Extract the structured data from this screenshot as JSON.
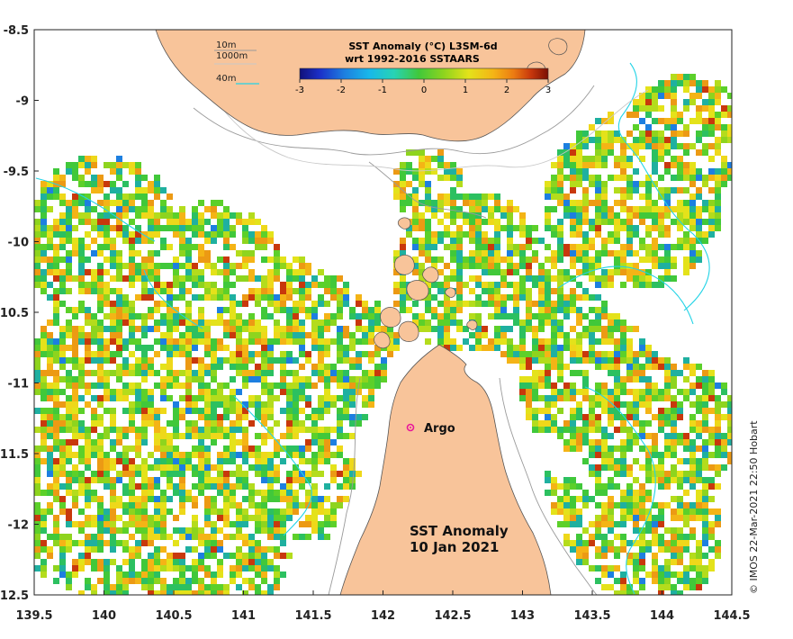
{
  "map": {
    "colorbar_title_line1": "SST Anomaly (°C) L3SM-6d",
    "colorbar_title_line2": "wrt 1992-2016 SSTAARS",
    "colorbar_ticks": [
      "-3",
      "-2",
      "-1",
      "0",
      "1",
      "2",
      "3"
    ],
    "colorbar_range": [
      -3,
      3
    ],
    "depth_legend": [
      {
        "label": "10m",
        "color": "#9a9a9a"
      },
      {
        "label": "1000m",
        "color": "#c8c8c8"
      },
      {
        "label": "40m",
        "color": "#22d3e6"
      }
    ],
    "lon_ticks": [
      "139.5",
      "140",
      "140.5",
      "141",
      "141.5",
      "142",
      "142.5",
      "143",
      "143.5",
      "144",
      "144.5"
    ],
    "lat_ticks": [
      "-8.5",
      "-9",
      "-9.5",
      "-10",
      "-10.5",
      "-11",
      "-11.5",
      "-12",
      "-12.5"
    ],
    "lon_range": [
      139.5,
      144.5
    ],
    "lat_range": [
      -12.5,
      -8.5
    ],
    "annotation_line1": "SST Anomaly",
    "annotation_line2": "10 Jan 2021",
    "argo_label": "Argo",
    "argo_position": {
      "lon": 142.2,
      "lat": -11.3
    },
    "credit": "© IMOS 22-Mar-2021 22:50 Hobart",
    "colors": {
      "land": "#f8c49a",
      "argo_marker": "#e8189a",
      "contour_40m": "#22d3e6",
      "contour_10m": "#9a9a9a"
    }
  }
}
